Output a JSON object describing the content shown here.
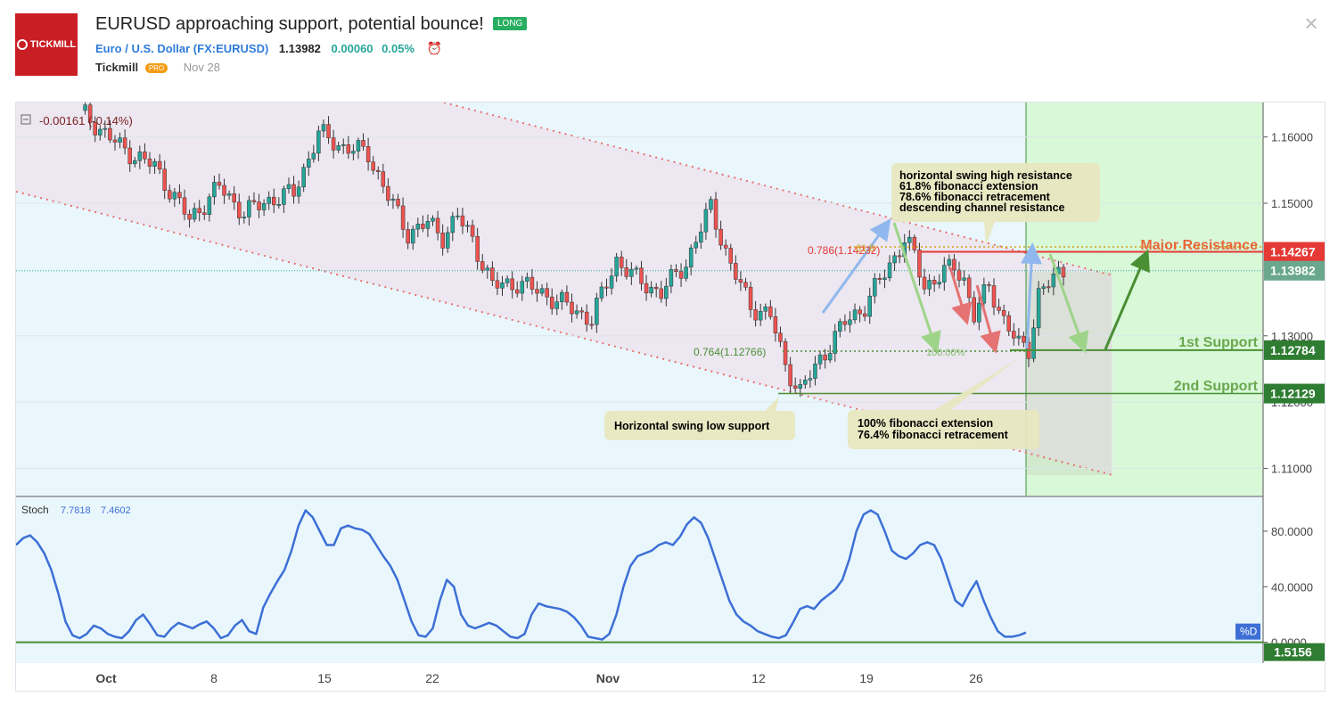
{
  "header": {
    "logo_text": "TICKMILL",
    "title": "EURUSD approaching support, potential bounce!",
    "badge": "LONG",
    "symbol_name": "Euro / U.S. Dollar (FX:EURUSD)",
    "price": "1.13982",
    "change": "0.00060",
    "change_pct": "0.05%",
    "author": "Tickmill",
    "author_badge": "PRO",
    "date": "Nov 28",
    "close_icon": "close-icon"
  },
  "colors": {
    "bull": "#26a69a",
    "bear": "#ef5350",
    "channel": "#e57373",
    "resistance": "#e53935",
    "support": "#4a8f34",
    "stoch": "#3d6fd6",
    "projection": "#d8f8d8"
  },
  "chart_data": [
    {
      "type": "candlestick",
      "symbol": "EURUSD",
      "x_ticks": [
        "Oct",
        "8",
        "15",
        "22",
        "Nov",
        "12",
        "19",
        "26"
      ],
      "y_ticks": [
        "1.16000",
        "1.15000",
        "1.13000",
        "1.12000",
        "1.11000"
      ],
      "ylim": [
        1.1059,
        1.1652
      ],
      "ohlc_legend": "-0.00161 (-0.14%)",
      "close_path": [
        [
          0,
          1.164
        ],
        [
          8,
          1.1585
        ],
        [
          15,
          1.1555
        ],
        [
          22,
          1.1475
        ],
        [
          28,
          1.1525
        ],
        [
          33,
          1.1485
        ],
        [
          38,
          1.1505
        ],
        [
          43,
          1.1515
        ],
        [
          48,
          1.1605
        ],
        [
          53,
          1.1585
        ],
        [
          58,
          1.1575
        ],
        [
          62,
          1.151
        ],
        [
          66,
          1.1455
        ],
        [
          70,
          1.147
        ],
        [
          73,
          1.145
        ],
        [
          76,
          1.148
        ],
        [
          79,
          1.1445
        ],
        [
          83,
          1.1375
        ],
        [
          88,
          1.138
        ],
        [
          93,
          1.1365
        ],
        [
          98,
          1.1345
        ],
        [
          103,
          1.1325
        ],
        [
          108,
          1.1415
        ],
        [
          112,
          1.1385
        ],
        [
          117,
          1.1365
        ],
        [
          122,
          1.141
        ],
        [
          127,
          1.1495
        ],
        [
          131,
          1.1405
        ],
        [
          135,
          1.1345
        ],
        [
          139,
          1.133
        ],
        [
          142,
          1.1255
        ],
        [
          145,
          1.1215
        ],
        [
          149,
          1.1265
        ],
        [
          154,
          1.132
        ],
        [
          158,
          1.1345
        ],
        [
          162,
          1.1395
        ],
        [
          166,
          1.1445
        ],
        [
          168,
          1.142
        ],
        [
          170,
          1.1375
        ],
        [
          173,
          1.139
        ],
        [
          176,
          1.1405
        ],
        [
          178,
          1.1385
        ],
        [
          180,
          1.133
        ],
        [
          183,
          1.1375
        ],
        [
          186,
          1.1325
        ],
        [
          189,
          1.1285
        ],
        [
          191,
          1.128
        ],
        [
          193,
          1.1365
        ],
        [
          196,
          1.1385
        ],
        [
          198,
          1.1398
        ]
      ],
      "levels": [
        {
          "name": "Major Resistance",
          "value": 1.14267
        },
        {
          "name": "1st Support",
          "value": 1.12784
        },
        {
          "name": "2nd Support",
          "value": 1.12129
        },
        {
          "name": "last",
          "value": 1.13982
        }
      ],
      "fib_labels": [
        "0.786(1.14232)",
        "61.8",
        "0.764(1.12766)",
        "100.00%"
      ],
      "annotations": [
        "horizontal swing high resistance",
        "61.8% fibonacci extension",
        "78.6% fibonacci retracement",
        "descending channel resistance",
        "Horizontal swing low support",
        "100% fibonacci extension",
        "76.4% fibonacci retracement"
      ]
    },
    {
      "type": "line",
      "name": "Stoch",
      "legend_values": [
        "7.7818",
        "7.4602"
      ],
      "y_ticks": [
        "80.0000",
        "40.0000",
        "0.0000"
      ],
      "ylim": [
        -15,
        105
      ],
      "series": [
        {
          "name": "%D",
          "values": [
            70,
            75,
            77,
            72,
            64,
            52,
            35,
            15,
            5,
            3,
            6,
            12,
            10,
            6,
            4,
            3,
            8,
            16,
            20,
            13,
            5,
            4,
            10,
            14,
            12,
            10,
            13,
            15,
            10,
            3,
            5,
            12,
            16,
            8,
            6,
            25,
            35,
            44,
            52,
            66,
            84,
            95,
            90,
            80,
            70,
            70,
            82,
            84,
            82,
            81,
            78,
            70,
            62,
            55,
            45,
            30,
            15,
            5,
            4,
            10,
            30,
            45,
            40,
            20,
            12,
            10,
            12,
            14,
            12,
            8,
            4,
            3,
            6,
            20,
            28,
            26,
            25,
            24,
            22,
            18,
            12,
            4,
            3,
            2,
            6,
            20,
            40,
            55,
            62,
            64,
            66,
            70,
            72,
            70,
            76,
            85,
            90,
            86,
            75,
            60,
            45,
            30,
            20,
            15,
            12,
            8,
            6,
            4,
            3,
            5,
            14,
            24,
            26,
            24,
            30,
            34,
            38,
            45,
            60,
            80,
            92,
            95,
            92,
            80,
            66,
            62,
            60,
            64,
            70,
            72,
            70,
            60,
            45,
            30,
            26,
            36,
            44,
            30,
            18,
            8,
            4,
            4,
            5,
            7
          ]
        }
      ],
      "last_value": "1.5156",
      "series_tag": "%D"
    }
  ]
}
